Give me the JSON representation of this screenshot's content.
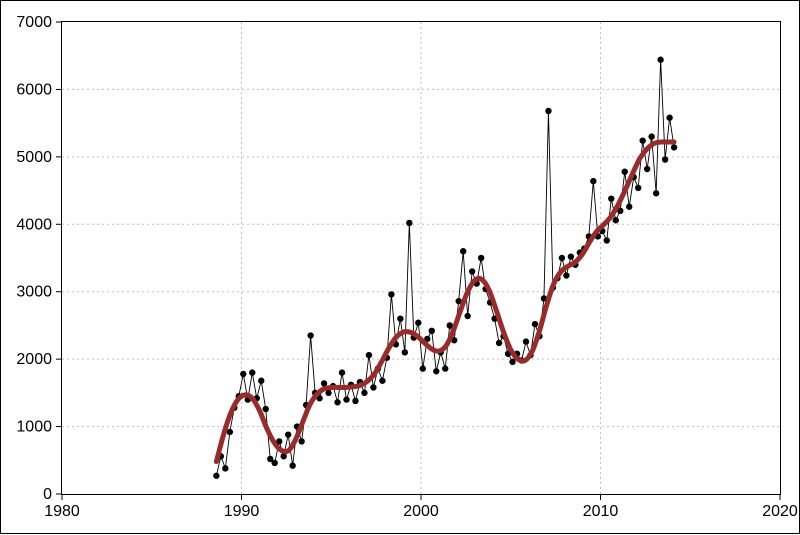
{
  "chart": {
    "type": "line-with-markers-and-trend",
    "background_color": "#ffffff",
    "plot_border_color": "#000000",
    "grid_color": "#c0c0c0",
    "grid_dash": "2,3",
    "axis_fontsize": 16,
    "tick_fontsize": 16,
    "xlim": [
      1980,
      2020
    ],
    "ylim": [
      0,
      7000
    ],
    "xticks": [
      1980,
      1990,
      2000,
      2010,
      2020
    ],
    "yticks": [
      0,
      1000,
      2000,
      3000,
      4000,
      5000,
      6000,
      7000
    ],
    "series_raw": {
      "marker": "circle",
      "marker_size": 3.2,
      "marker_color": "#000000",
      "line_color": "#000000",
      "line_width": 0.9,
      "points": [
        [
          1988.6,
          270
        ],
        [
          1988.85,
          560
        ],
        [
          1989.1,
          380
        ],
        [
          1989.35,
          920
        ],
        [
          1989.6,
          1280
        ],
        [
          1989.85,
          1450
        ],
        [
          1990.1,
          1780
        ],
        [
          1990.35,
          1400
        ],
        [
          1990.6,
          1800
        ],
        [
          1990.85,
          1420
        ],
        [
          1991.1,
          1680
        ],
        [
          1991.35,
          1260
        ],
        [
          1991.6,
          520
        ],
        [
          1991.85,
          460
        ],
        [
          1992.1,
          780
        ],
        [
          1992.35,
          560
        ],
        [
          1992.6,
          880
        ],
        [
          1992.85,
          420
        ],
        [
          1993.1,
          1000
        ],
        [
          1993.35,
          780
        ],
        [
          1993.6,
          1320
        ],
        [
          1993.85,
          2350
        ],
        [
          1994.1,
          1500
        ],
        [
          1994.35,
          1420
        ],
        [
          1994.6,
          1640
        ],
        [
          1994.85,
          1500
        ],
        [
          1995.1,
          1600
        ],
        [
          1995.35,
          1360
        ],
        [
          1995.6,
          1800
        ],
        [
          1995.85,
          1400
        ],
        [
          1996.1,
          1620
        ],
        [
          1996.35,
          1380
        ],
        [
          1996.6,
          1660
        ],
        [
          1996.85,
          1500
        ],
        [
          1997.1,
          2060
        ],
        [
          1997.35,
          1580
        ],
        [
          1997.6,
          1860
        ],
        [
          1997.85,
          1680
        ],
        [
          1998.1,
          2020
        ],
        [
          1998.35,
          2960
        ],
        [
          1998.6,
          2220
        ],
        [
          1998.85,
          2600
        ],
        [
          1999.1,
          2100
        ],
        [
          1999.35,
          4020
        ],
        [
          1999.6,
          2320
        ],
        [
          1999.85,
          2540
        ],
        [
          2000.1,
          1860
        ],
        [
          2000.35,
          2300
        ],
        [
          2000.6,
          2420
        ],
        [
          2000.85,
          1820
        ],
        [
          2001.1,
          2100
        ],
        [
          2001.35,
          1860
        ],
        [
          2001.6,
          2500
        ],
        [
          2001.85,
          2280
        ],
        [
          2002.1,
          2860
        ],
        [
          2002.35,
          3600
        ],
        [
          2002.6,
          2640
        ],
        [
          2002.85,
          3300
        ],
        [
          2003.1,
          3120
        ],
        [
          2003.35,
          3500
        ],
        [
          2003.6,
          3040
        ],
        [
          2003.85,
          2840
        ],
        [
          2004.1,
          2600
        ],
        [
          2004.35,
          2240
        ],
        [
          2004.6,
          2340
        ],
        [
          2004.85,
          2080
        ],
        [
          2005.1,
          1960
        ],
        [
          2005.35,
          2080
        ],
        [
          2005.6,
          1980
        ],
        [
          2005.85,
          2260
        ],
        [
          2006.1,
          2060
        ],
        [
          2006.35,
          2520
        ],
        [
          2006.6,
          2340
        ],
        [
          2006.85,
          2900
        ],
        [
          2007.1,
          5680
        ],
        [
          2007.35,
          3060
        ],
        [
          2007.6,
          3200
        ],
        [
          2007.85,
          3500
        ],
        [
          2008.1,
          3240
        ],
        [
          2008.35,
          3520
        ],
        [
          2008.6,
          3400
        ],
        [
          2008.85,
          3580
        ],
        [
          2009.1,
          3640
        ],
        [
          2009.35,
          3820
        ],
        [
          2009.6,
          4640
        ],
        [
          2009.85,
          3820
        ],
        [
          2010.1,
          3900
        ],
        [
          2010.35,
          3760
        ],
        [
          2010.6,
          4380
        ],
        [
          2010.85,
          4060
        ],
        [
          2011.1,
          4200
        ],
        [
          2011.35,
          4780
        ],
        [
          2011.6,
          4260
        ],
        [
          2011.85,
          4700
        ],
        [
          2012.1,
          4540
        ],
        [
          2012.35,
          5240
        ],
        [
          2012.6,
          4820
        ],
        [
          2012.85,
          5300
        ],
        [
          2013.1,
          4460
        ],
        [
          2013.35,
          6440
        ],
        [
          2013.6,
          4960
        ],
        [
          2013.85,
          5580
        ],
        [
          2014.1,
          5140
        ]
      ]
    },
    "series_trend": {
      "line_color": "#9a2b2b",
      "line_width": 5,
      "points": [
        [
          1988.6,
          480
        ],
        [
          1989.0,
          880
        ],
        [
          1989.4,
          1200
        ],
        [
          1989.8,
          1400
        ],
        [
          1990.2,
          1470
        ],
        [
          1990.6,
          1420
        ],
        [
          1991.0,
          1240
        ],
        [
          1991.4,
          980
        ],
        [
          1991.8,
          770
        ],
        [
          1992.2,
          650
        ],
        [
          1992.6,
          640
        ],
        [
          1993.0,
          800
        ],
        [
          1993.4,
          1060
        ],
        [
          1993.8,
          1320
        ],
        [
          1994.2,
          1480
        ],
        [
          1994.6,
          1560
        ],
        [
          1995.0,
          1580
        ],
        [
          1995.4,
          1580
        ],
        [
          1995.8,
          1580
        ],
        [
          1996.2,
          1590
        ],
        [
          1996.6,
          1610
        ],
        [
          1997.0,
          1670
        ],
        [
          1997.4,
          1780
        ],
        [
          1997.8,
          1960
        ],
        [
          1998.2,
          2160
        ],
        [
          1998.6,
          2320
        ],
        [
          1999.0,
          2400
        ],
        [
          1999.4,
          2400
        ],
        [
          1999.8,
          2340
        ],
        [
          2000.2,
          2240
        ],
        [
          2000.6,
          2150
        ],
        [
          2001.0,
          2120
        ],
        [
          2001.4,
          2200
        ],
        [
          2001.8,
          2420
        ],
        [
          2002.2,
          2720
        ],
        [
          2002.6,
          3000
        ],
        [
          2003.0,
          3170
        ],
        [
          2003.4,
          3180
        ],
        [
          2003.8,
          3020
        ],
        [
          2004.2,
          2720
        ],
        [
          2004.6,
          2400
        ],
        [
          2005.0,
          2140
        ],
        [
          2005.4,
          2000
        ],
        [
          2005.8,
          1980
        ],
        [
          2006.2,
          2120
        ],
        [
          2006.6,
          2420
        ],
        [
          2007.0,
          2800
        ],
        [
          2007.4,
          3120
        ],
        [
          2007.8,
          3300
        ],
        [
          2008.2,
          3380
        ],
        [
          2008.6,
          3440
        ],
        [
          2009.0,
          3560
        ],
        [
          2009.4,
          3740
        ],
        [
          2009.8,
          3900
        ],
        [
          2010.2,
          4000
        ],
        [
          2010.6,
          4120
        ],
        [
          2011.0,
          4300
        ],
        [
          2011.4,
          4520
        ],
        [
          2011.8,
          4760
        ],
        [
          2012.2,
          4980
        ],
        [
          2012.6,
          5120
        ],
        [
          2013.0,
          5200
        ],
        [
          2013.4,
          5220
        ],
        [
          2013.8,
          5220
        ],
        [
          2014.1,
          5220
        ]
      ]
    }
  }
}
